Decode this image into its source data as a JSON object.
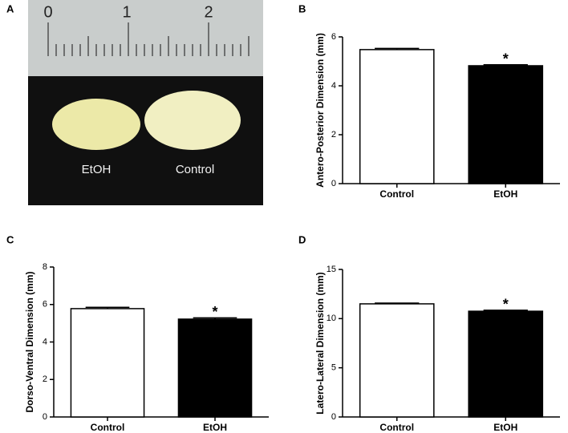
{
  "photo": {
    "panel": "A",
    "ruler_labels": [
      "0",
      "1",
      "2"
    ],
    "labels": [
      "EtOH",
      "Control"
    ]
  },
  "chart_data": [
    {
      "type": "bar",
      "panel": "B",
      "y_label": "Antero-Posterior Dimension (mm)",
      "categories": [
        "Control",
        "EtOH"
      ],
      "values": [
        5.48,
        4.82
      ],
      "errors": [
        0.05,
        0.04
      ],
      "colors": [
        "#ffffff",
        "#000000"
      ],
      "significance_labels": [
        null,
        "*"
      ],
      "ylim": [
        0,
        6
      ],
      "yticks": [
        0,
        2,
        4,
        6
      ]
    },
    {
      "type": "bar",
      "panel": "C",
      "y_label": "Dorso-Ventral Dimension (mm)",
      "categories": [
        "Control",
        "EtOH"
      ],
      "values": [
        5.78,
        5.22
      ],
      "errors": [
        0.07,
        0.07
      ],
      "colors": [
        "#ffffff",
        "#000000"
      ],
      "significance_labels": [
        null,
        "*"
      ],
      "ylim": [
        0,
        8
      ],
      "yticks": [
        0,
        2,
        4,
        6,
        8
      ]
    },
    {
      "type": "bar",
      "panel": "D",
      "y_label": "Latero-Lateral Dimension (mm)",
      "categories": [
        "Control",
        "EtOH"
      ],
      "values": [
        11.5,
        10.75
      ],
      "errors": [
        0.08,
        0.1
      ],
      "colors": [
        "#ffffff",
        "#000000"
      ],
      "significance_labels": [
        null,
        "*"
      ],
      "ylim": [
        0,
        15
      ],
      "yticks": [
        0,
        5,
        10,
        15
      ]
    }
  ]
}
